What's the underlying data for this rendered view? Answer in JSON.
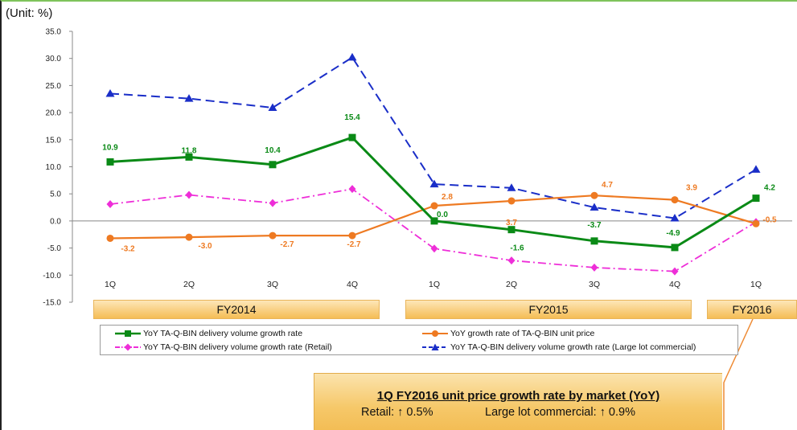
{
  "unit_label": "(Unit: %)",
  "fiscal_years": [
    "FY2014",
    "FY2015",
    "FY2016"
  ],
  "colors": {
    "green": "#0a8a16",
    "orange": "#ee7a22",
    "magenta": "#ee2ed8",
    "blue": "#1a2ec8",
    "band_gold": "#f5bd55",
    "callout_line": "#ee8a33"
  },
  "chart_data": {
    "type": "line",
    "categories": [
      "1Q",
      "2Q",
      "3Q",
      "4Q",
      "1Q",
      "2Q",
      "3Q",
      "4Q",
      "1Q"
    ],
    "fiscal_year_groups": [
      {
        "label": "FY2014",
        "categories": [
          "1Q",
          "2Q",
          "3Q",
          "4Q"
        ]
      },
      {
        "label": "FY2015",
        "categories": [
          "1Q",
          "2Q",
          "3Q",
          "4Q"
        ]
      },
      {
        "label": "FY2016",
        "categories": [
          "1Q"
        ]
      }
    ],
    "ylim": [
      -15,
      35
    ],
    "yticks": [
      "35.0",
      "30.0",
      "25.0",
      "20.0",
      "15.0",
      "10.0",
      "5.0",
      "0.0",
      "-5.0",
      "-10.0",
      "-15.0"
    ],
    "ylabel": "(Unit: %)",
    "series": [
      {
        "name": "YoY TA-Q-BIN delivery volume growth rate",
        "marker": "square",
        "color": "#0a8a16",
        "values": [
          10.9,
          11.8,
          10.4,
          15.4,
          0.0,
          -1.6,
          -3.7,
          -4.9,
          4.2
        ],
        "labels": [
          "10.9",
          "11.8",
          "10.4",
          "15.4",
          "0.0",
          "-1.6",
          "-3.7",
          "-4.9",
          "4.2"
        ]
      },
      {
        "name": "YoY growth rate of TA-Q-BIN unit price",
        "marker": "circle",
        "color": "#ee7a22",
        "values": [
          -3.2,
          -3.0,
          -2.7,
          -2.7,
          2.8,
          3.7,
          4.7,
          3.9,
          -0.5
        ],
        "labels": [
          "-3.2",
          "-3.0",
          "-2.7",
          "-2.7",
          "2.8",
          "3.7",
          "4.7",
          "3.9",
          "-0.5"
        ]
      },
      {
        "name": "YoY TA-Q-BIN delivery volume growth rate (Retail)",
        "marker": "diamond",
        "color": "#ee2ed8",
        "values": [
          3.1,
          4.8,
          3.3,
          5.9,
          -5.1,
          -7.3,
          -8.6,
          -9.3,
          -0.2
        ]
      },
      {
        "name": "YoY TA-Q-BIN delivery volume growth rate (Large lot commercial)",
        "marker": "triangle",
        "color": "#1a2ec8",
        "values": [
          23.5,
          22.6,
          20.9,
          30.2,
          6.8,
          6.1,
          2.5,
          0.5,
          9.5
        ]
      }
    ],
    "legend_position": "bottom",
    "grid": false
  },
  "callout": {
    "title": "1Q FY2016 unit price growth rate by market (YoY)",
    "retail": "Retail: ↑ 0.5%",
    "large_lot": "Large lot commercial: ↑ 0.9%"
  }
}
